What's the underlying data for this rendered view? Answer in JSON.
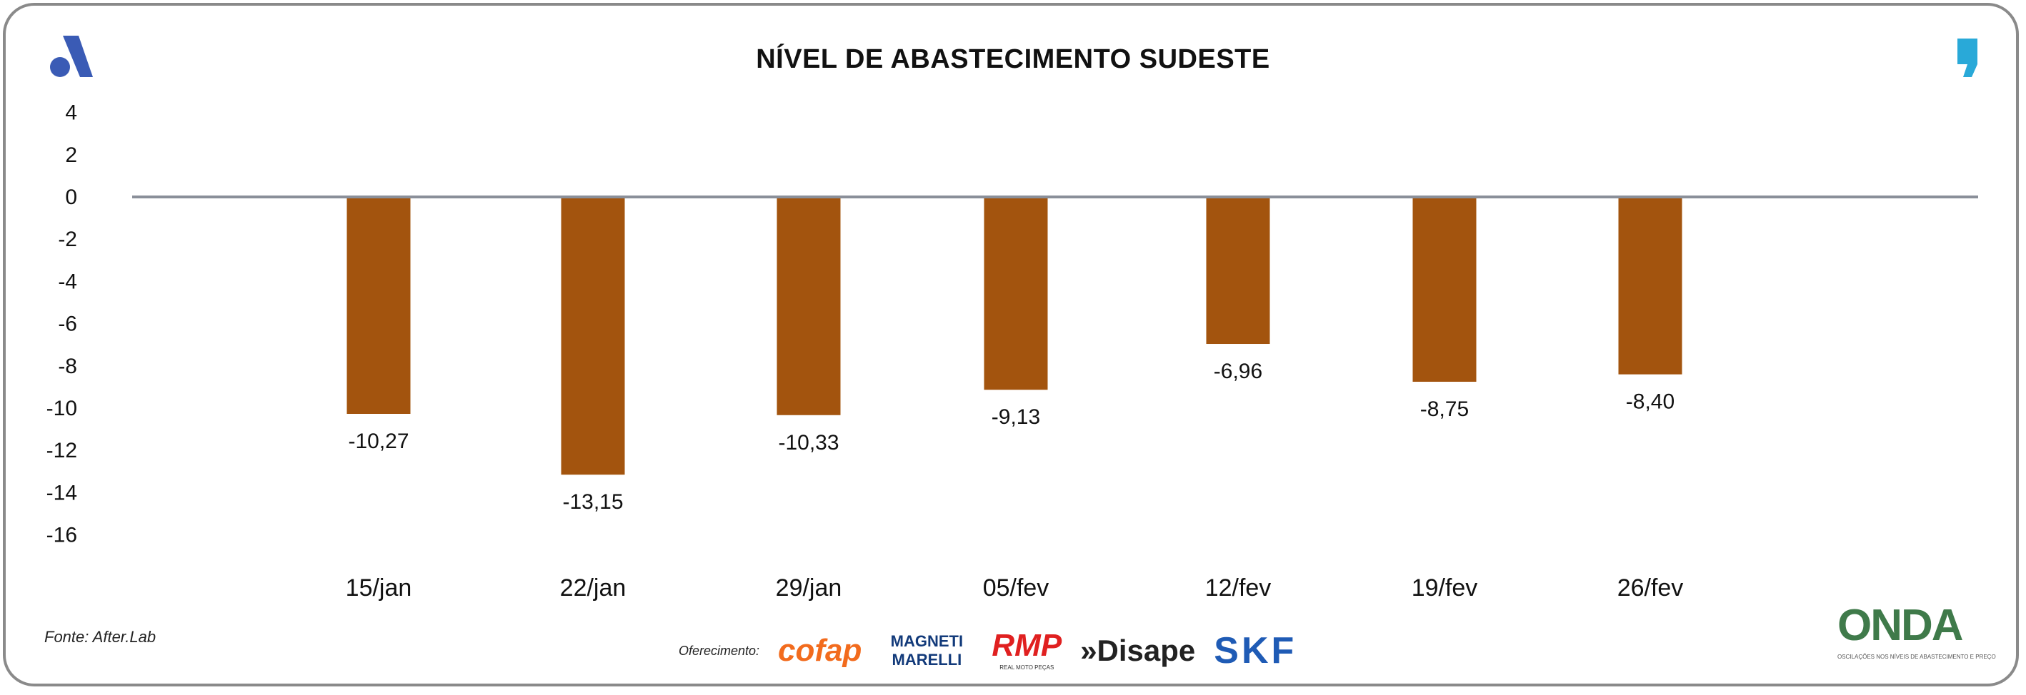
{
  "title": "NÍVEL DE ABASTECIMENTO SUDESTE",
  "source": "Fonte: After.Lab",
  "sponsors_label": "Oferecimento:",
  "sponsors": [
    "cofap",
    "MAGNETI MARELLI",
    "RMP",
    "»Disape",
    "SKF"
  ],
  "rmp_sub": "REAL MOTO PEÇAS",
  "onda": {
    "name": "ONDA",
    "tagline": "OSCILAÇÕES NOS NÍVEIS DE ABASTECIMENTO E PREÇO"
  },
  "icons": {
    "left": "after-lab-logo",
    "right": "comma-quote-logo"
  },
  "colors": {
    "bar": "#a3540e",
    "zero_line": "#8a8f99",
    "left_logo": "#3a5bb5",
    "right_logo": "#29a9d8"
  },
  "chart_data": {
    "type": "bar",
    "title": "NÍVEL DE ABASTECIMENTO SUDESTE",
    "categories": [
      "15/jan",
      "22/jan",
      "29/jan",
      "05/fev",
      "12/fev",
      "19/fev",
      "26/fev"
    ],
    "values": [
      -10.27,
      -13.15,
      -10.33,
      -9.13,
      -6.96,
      -8.75,
      -8.4
    ],
    "data_labels": [
      "-10,27",
      "-13,15",
      "-10,33",
      "-9,13",
      "-6,96",
      "-8,75",
      "-8,40"
    ],
    "yticks": [
      "4",
      "2",
      "0",
      "-2",
      "-4",
      "-6",
      "-8",
      "-10",
      "-12",
      "-14",
      "-16"
    ],
    "ylim": [
      -16,
      4
    ],
    "grid": false,
    "legend": "none"
  }
}
